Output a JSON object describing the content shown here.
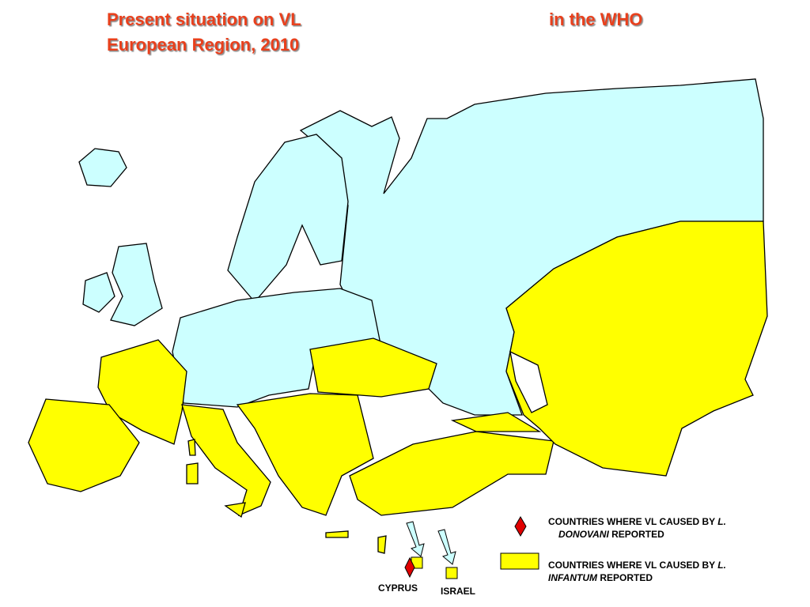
{
  "title": {
    "line1_left": "Present situation on VL",
    "line1_right": "in the WHO",
    "line2": "European Region, 2010"
  },
  "legend": [
    {
      "prefix": "COUNTRIES WHERE VL CAUSED BY",
      "species_genus": "L.",
      "species_name": "DONOVANI",
      "suffix": "REPORTED"
    },
    {
      "prefix": "COUNTRIES WHERE VL CAUSED BY",
      "species_genus": "L.",
      "species_name": "INFANTUM",
      "suffix": "REPORTED"
    }
  ],
  "labels": {
    "cyprus": "CYPRUS",
    "israel": "ISRAEL"
  }
}
